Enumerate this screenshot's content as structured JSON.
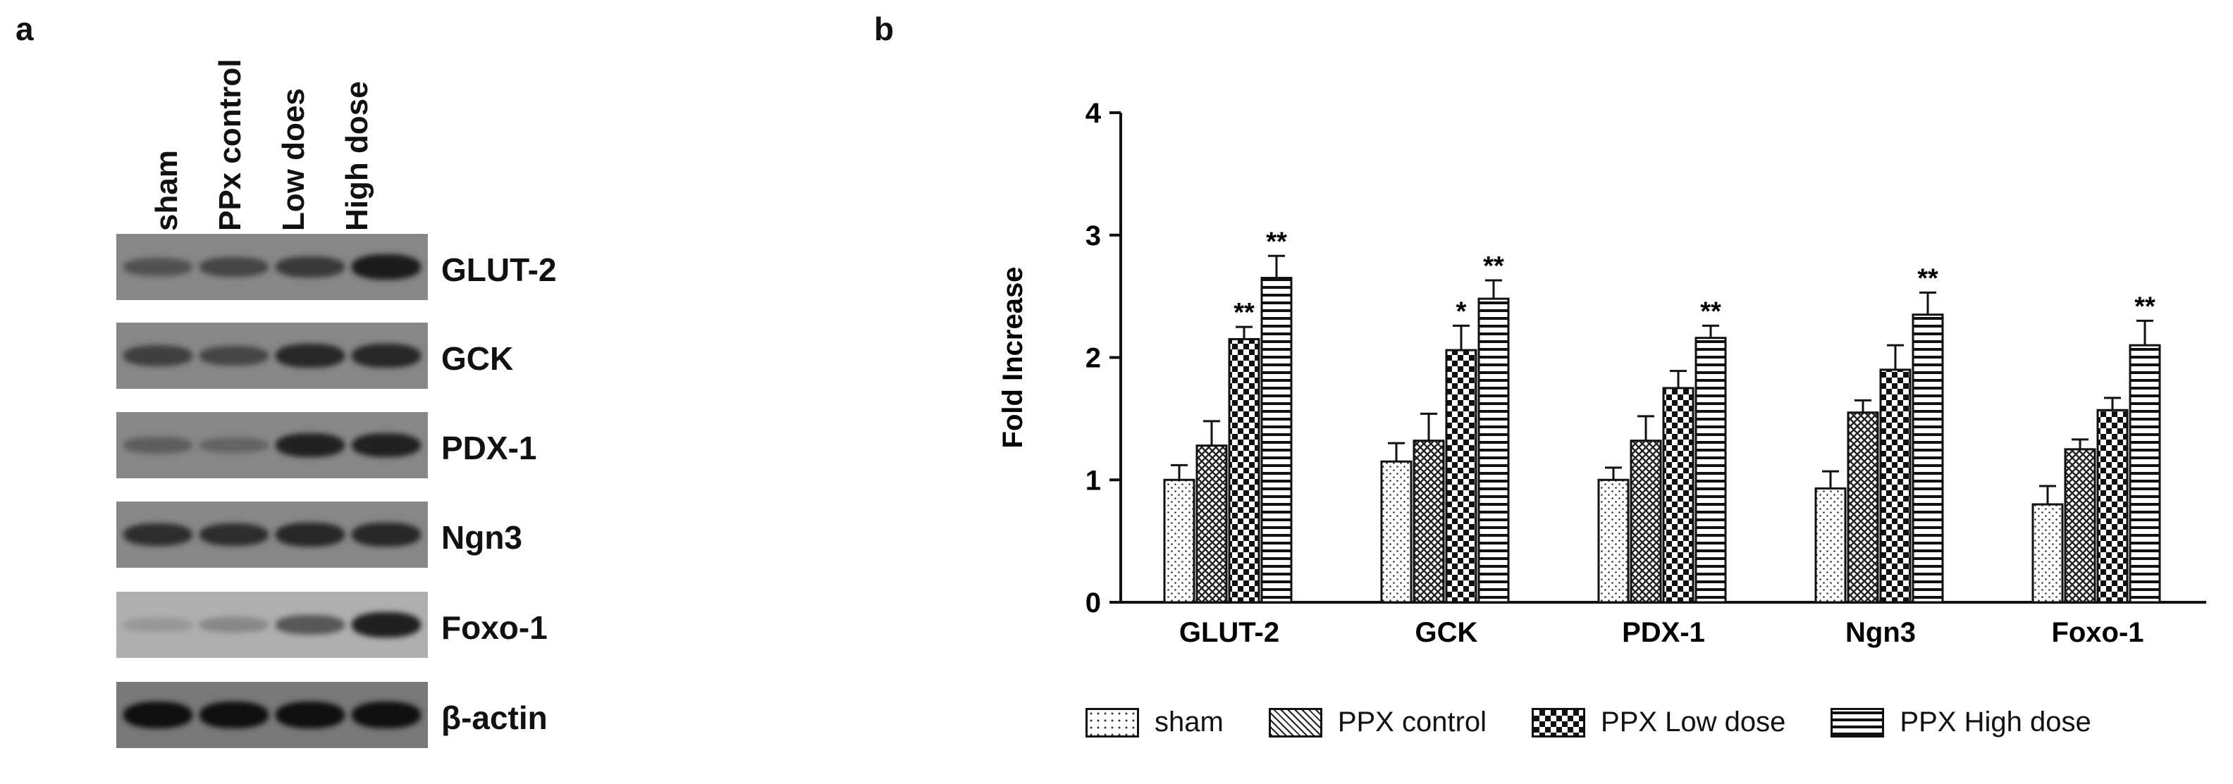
{
  "panel_a": {
    "letter": "a",
    "lanes": [
      "sham",
      "PPx control",
      "Low does",
      "High dose"
    ],
    "genes": [
      {
        "name": "GLUT-2",
        "intensity": [
          0.45,
          0.55,
          0.65,
          0.9
        ]
      },
      {
        "name": "GCK",
        "intensity": [
          0.6,
          0.55,
          0.8,
          0.8
        ]
      },
      {
        "name": "PDX-1",
        "intensity": [
          0.35,
          0.3,
          0.85,
          0.85
        ]
      },
      {
        "name": "Ngn3",
        "intensity": [
          0.75,
          0.75,
          0.8,
          0.8
        ]
      },
      {
        "name": "Foxo-1",
        "intensity": [
          0.15,
          0.25,
          0.55,
          0.9
        ]
      },
      {
        "name": "β-actin",
        "intensity": [
          1.0,
          1.0,
          1.0,
          1.0
        ]
      }
    ]
  },
  "panel_b": {
    "letter": "b"
  },
  "chart_data": {
    "type": "bar",
    "ylabel": "Fold Increase",
    "ylim": [
      0,
      4
    ],
    "yticks": [
      0,
      1,
      2,
      3,
      4
    ],
    "categories": [
      "GLUT-2",
      "GCK",
      "PDX-1",
      "Ngn3",
      "Foxo-1"
    ],
    "series": [
      {
        "name": "sham",
        "pattern": "dots",
        "values": [
          1.0,
          1.15,
          1.0,
          0.93,
          0.8
        ],
        "errors": [
          0.12,
          0.15,
          0.1,
          0.14,
          0.15
        ],
        "significance": [
          "",
          "",
          "",
          "",
          ""
        ]
      },
      {
        "name": "PPX control",
        "pattern": "crosshatch",
        "values": [
          1.28,
          1.32,
          1.32,
          1.55,
          1.25
        ],
        "errors": [
          0.2,
          0.22,
          0.2,
          0.1,
          0.08
        ],
        "significance": [
          "",
          "",
          "",
          "",
          ""
        ]
      },
      {
        "name": "PPX Low dose",
        "pattern": "checker",
        "values": [
          2.15,
          2.06,
          1.75,
          1.9,
          1.57
        ],
        "errors": [
          0.1,
          0.2,
          0.14,
          0.2,
          0.1
        ],
        "significance": [
          "**",
          "*",
          "",
          "",
          ""
        ]
      },
      {
        "name": "PPX High dose",
        "pattern": "hstripes",
        "values": [
          2.65,
          2.48,
          2.16,
          2.35,
          2.1
        ],
        "errors": [
          0.18,
          0.15,
          0.1,
          0.18,
          0.2
        ],
        "significance": [
          "**",
          "**",
          "**",
          "**",
          "**"
        ]
      }
    ],
    "legend_position": "bottom"
  }
}
